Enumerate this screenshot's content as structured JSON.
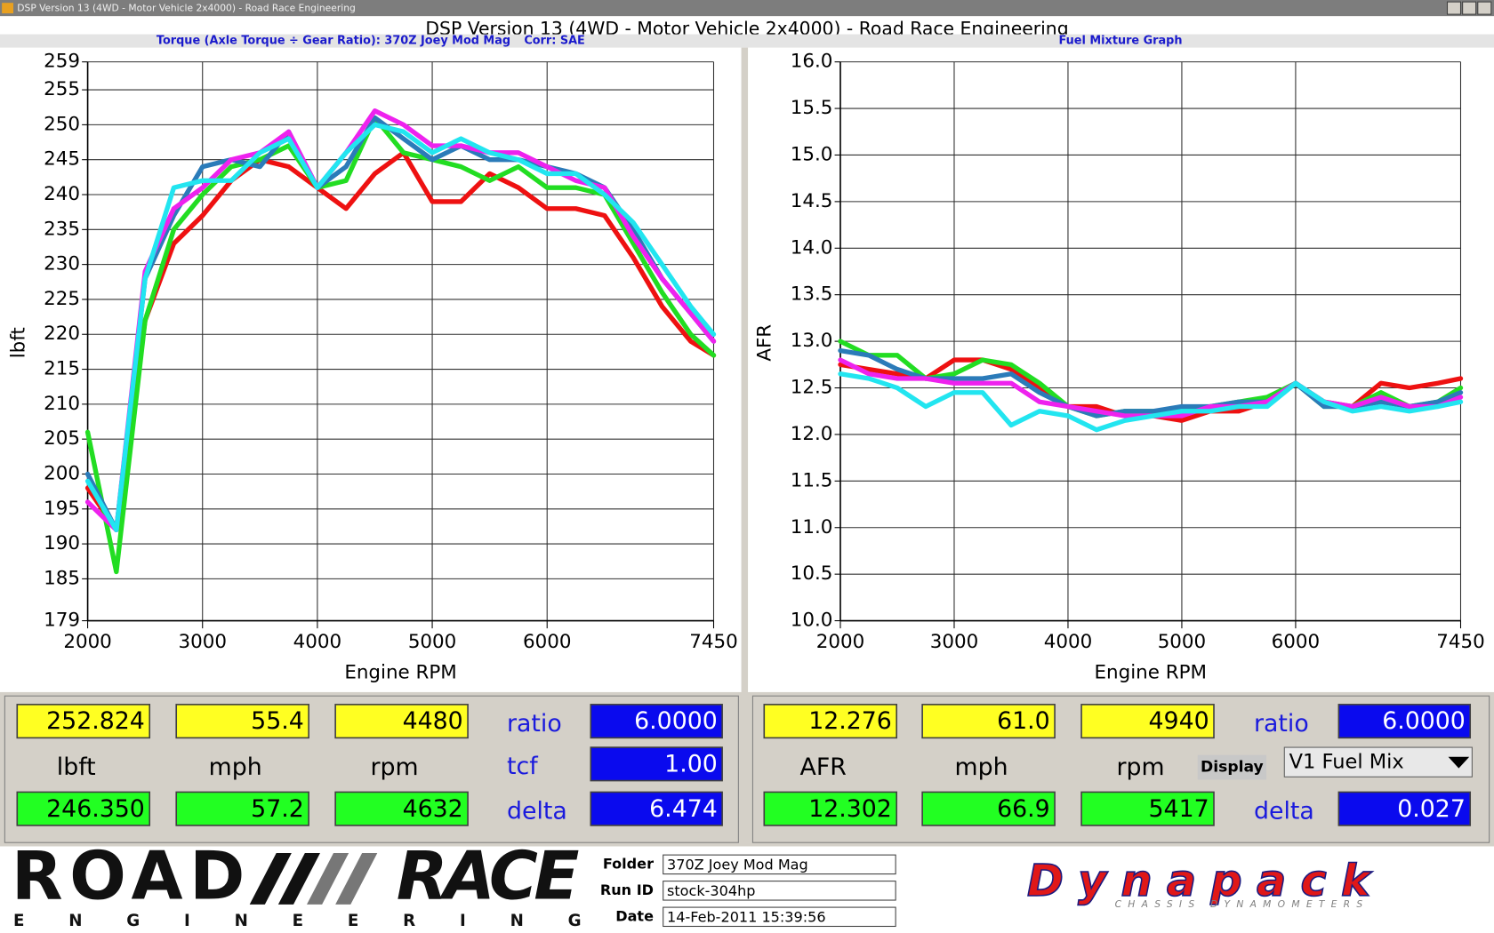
{
  "window": {
    "title": "DSP Version 13 (4WD - Motor Vehicle 2x4000) - Road Race Engineering"
  },
  "chart_data": [
    {
      "type": "line",
      "title": "Torque (Axle Torque ÷ Gear Ratio): 370Z Joey Mod Mag",
      "subtitle": "Corr: SAE",
      "x_label": "Engine RPM",
      "y_label": "lbft",
      "x": [
        2000,
        2250,
        2500,
        2750,
        3000,
        3250,
        3500,
        3750,
        4000,
        4250,
        4500,
        4750,
        5000,
        5250,
        5500,
        5750,
        6000,
        6250,
        6500,
        6750,
        7000,
        7250,
        7450
      ],
      "xlim": [
        2000,
        7450
      ],
      "xticks": [
        2000,
        3000,
        4000,
        5000,
        6000,
        7450
      ],
      "ylim": [
        179,
        259
      ],
      "yticks": [
        179,
        185,
        190,
        195,
        200,
        205,
        210,
        215,
        220,
        225,
        230,
        235,
        240,
        245,
        250,
        255,
        259
      ],
      "grid": true,
      "series": [
        {
          "color": "#ee1111",
          "values": [
            198,
            192,
            222,
            233,
            237,
            242,
            245,
            244,
            241,
            238,
            243,
            246,
            239,
            239,
            243,
            241,
            238,
            238,
            237,
            231,
            224,
            219,
            217
          ]
        },
        {
          "color": "#22dd22",
          "values": [
            206,
            186,
            222,
            235,
            240,
            244,
            245,
            247,
            241,
            242,
            251,
            246,
            245,
            244,
            242,
            244,
            241,
            241,
            240,
            233,
            226,
            220,
            217
          ]
        },
        {
          "color": "#2b7bb9",
          "values": [
            200,
            192,
            228,
            237,
            244,
            245,
            244,
            249,
            241,
            244,
            251,
            248,
            245,
            247,
            245,
            245,
            244,
            243,
            241,
            235,
            228,
            223,
            219
          ]
        },
        {
          "color": "#ee22ee",
          "values": [
            196,
            192,
            229,
            238,
            241,
            245,
            246,
            249,
            241,
            246,
            252,
            250,
            247,
            247,
            246,
            246,
            244,
            242,
            241,
            234,
            228,
            223,
            219
          ]
        },
        {
          "color": "#22e5f0",
          "values": [
            199,
            192,
            228,
            241,
            242,
            242,
            246,
            248,
            241,
            246,
            250,
            249,
            246,
            248,
            246,
            245,
            243,
            243,
            240,
            236,
            230,
            224,
            220
          ]
        }
      ]
    },
    {
      "type": "line",
      "title": "Fuel Mixture Graph",
      "x_label": "Engine RPM",
      "y_label": "AFR",
      "x": [
        2000,
        2250,
        2500,
        2750,
        3000,
        3250,
        3500,
        3750,
        4000,
        4250,
        4500,
        4750,
        5000,
        5250,
        5500,
        5750,
        6000,
        6250,
        6500,
        6750,
        7000,
        7250,
        7450
      ],
      "xlim": [
        2000,
        7450
      ],
      "xticks": [
        2000,
        3000,
        4000,
        5000,
        6000,
        7450
      ],
      "ylim": [
        10,
        16
      ],
      "yticks": [
        {
          "value": 10,
          "label": "10.0"
        },
        10.5,
        {
          "value": 11,
          "label": "11.0"
        },
        11.5,
        {
          "value": 12,
          "label": "12.0"
        },
        12.5,
        {
          "value": 13,
          "label": "13.0"
        },
        13.5,
        {
          "value": 14,
          "label": "14.0"
        },
        14.5,
        {
          "value": 15,
          "label": "15.0"
        },
        15.5,
        {
          "value": 16,
          "label": "16.0"
        }
      ],
      "grid": true,
      "series": [
        {
          "color": "#ee1111",
          "values": [
            12.75,
            12.7,
            12.65,
            12.6,
            12.8,
            12.8,
            12.7,
            12.5,
            12.3,
            12.3,
            12.2,
            12.2,
            12.15,
            12.25,
            12.25,
            12.35,
            12.55,
            12.35,
            12.3,
            12.55,
            12.5,
            12.55,
            12.6
          ]
        },
        {
          "color": "#22dd22",
          "values": [
            13.0,
            12.85,
            12.85,
            12.6,
            12.65,
            12.8,
            12.75,
            12.55,
            12.3,
            12.2,
            12.25,
            12.25,
            12.25,
            12.3,
            12.35,
            12.4,
            12.55,
            12.3,
            12.3,
            12.45,
            12.3,
            12.35,
            12.5
          ]
        },
        {
          "color": "#2b7bb9",
          "values": [
            12.9,
            12.85,
            12.7,
            12.6,
            12.6,
            12.6,
            12.65,
            12.45,
            12.3,
            12.2,
            12.25,
            12.25,
            12.3,
            12.3,
            12.35,
            12.35,
            12.55,
            12.3,
            12.3,
            12.35,
            12.3,
            12.35,
            12.45
          ]
        },
        {
          "color": "#ee22ee",
          "values": [
            12.8,
            12.65,
            12.6,
            12.6,
            12.55,
            12.55,
            12.55,
            12.35,
            12.3,
            12.25,
            12.2,
            12.2,
            12.2,
            12.3,
            12.3,
            12.35,
            12.55,
            12.35,
            12.3,
            12.4,
            12.3,
            12.3,
            12.4
          ]
        },
        {
          "color": "#22e5f0",
          "values": [
            12.65,
            12.6,
            12.5,
            12.3,
            12.45,
            12.45,
            12.1,
            12.25,
            12.2,
            12.05,
            12.15,
            12.2,
            12.25,
            12.25,
            12.3,
            12.3,
            12.55,
            12.35,
            12.25,
            12.3,
            12.25,
            12.3,
            12.35
          ]
        }
      ]
    }
  ],
  "panels": [
    {
      "top": [
        "252.824",
        "55.4",
        "4480"
      ],
      "units": [
        "lbft",
        "mph",
        "rpm"
      ],
      "bottom": [
        "246.350",
        "57.2",
        "4632"
      ],
      "labels": [
        "ratio",
        "tcf",
        "delta"
      ],
      "values": [
        "6.0000",
        "1.00",
        "6.474"
      ]
    },
    {
      "top": [
        "12.276",
        "61.0",
        "4940"
      ],
      "units": [
        "AFR",
        "mph",
        "rpm"
      ],
      "bottom": [
        "12.302",
        "66.9",
        "5417"
      ],
      "labels": [
        "ratio",
        "delta"
      ],
      "values": [
        "6.0000",
        "0.027"
      ],
      "display_label": "Display",
      "display_value": "V1 Fuel Mix"
    }
  ],
  "footer": {
    "logo_left": "ROAD",
    "logo_right": "RACE",
    "logo_sub": "ENGINEERING",
    "fields": [
      {
        "label": "Folder",
        "value": "370Z Joey Mod Mag"
      },
      {
        "label": "Run ID",
        "value": "stock-304hp"
      },
      {
        "label": "Date",
        "value": "14-Feb-2011 15:39:56"
      }
    ],
    "brand": "Dynapack",
    "brand_sub": "CHASSIS DYNAMOMETERS"
  }
}
